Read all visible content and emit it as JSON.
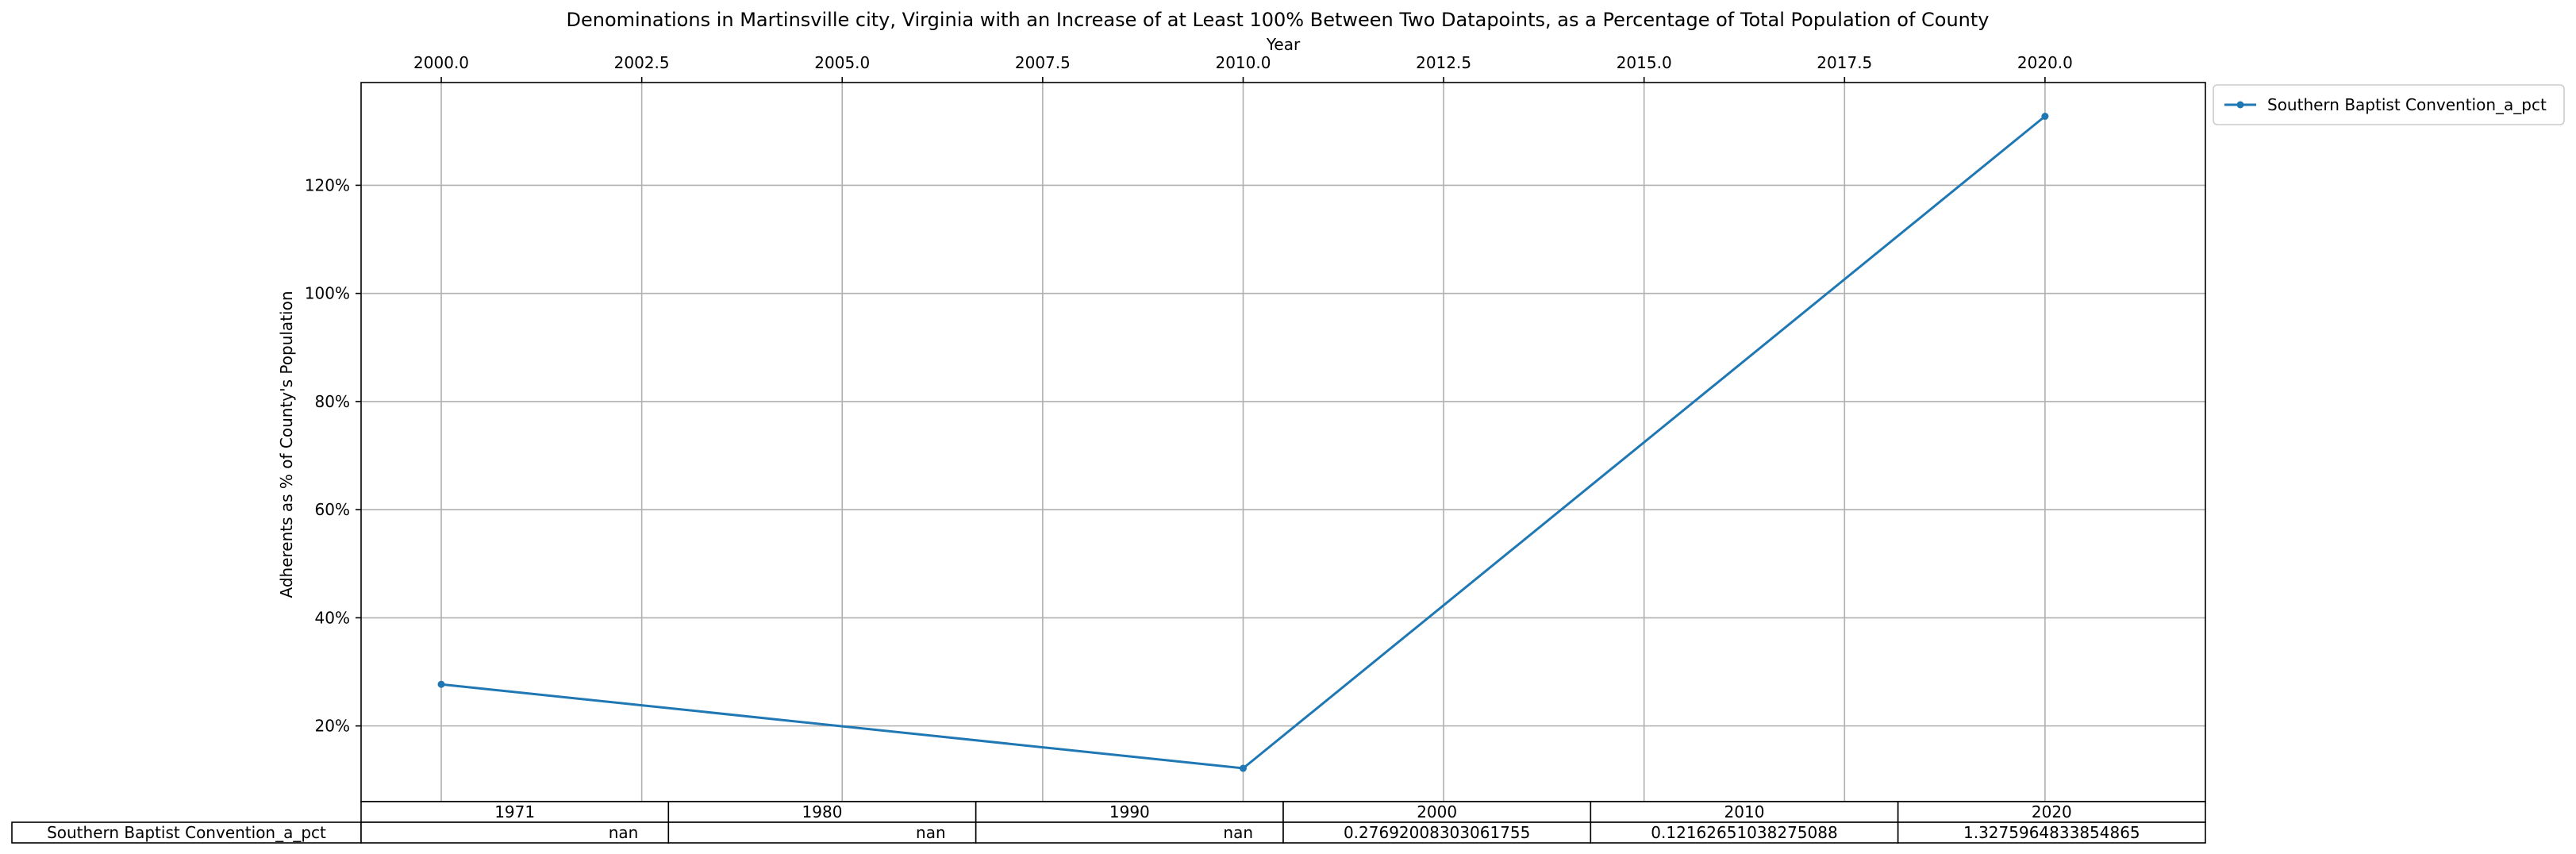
{
  "chart_data": {
    "type": "line",
    "title": "Denominations in Martinsville city, Virginia with an Increase of at Least 100% Between Two Datapoints, as a Percentage of Total Population of County",
    "xlabel": "Year",
    "ylabel": "Adherents as % of County's Population",
    "x_ticks": [
      "2000.0",
      "2002.5",
      "2005.0",
      "2007.5",
      "2010.0",
      "2012.5",
      "2015.0",
      "2017.5",
      "2020.0"
    ],
    "y_ticks": [
      "20%",
      "40%",
      "60%",
      "80%",
      "100%",
      "120%"
    ],
    "xlim": [
      1999.0,
      2022.0
    ],
    "ylim": [
      0.06,
      1.39
    ],
    "grid": true,
    "x_axis_position": "top",
    "legend_position": "outside-top-right",
    "series": [
      {
        "name": "Southern Baptist Convention_a_pct",
        "color": "#1f77b4",
        "x": [
          2000,
          2010,
          2020
        ],
        "y": [
          0.27692008303061755,
          0.12162651038275088,
          1.3275964833854865
        ]
      }
    ],
    "table": {
      "columns": [
        "1971",
        "1980",
        "1990",
        "2000",
        "2010",
        "2020"
      ],
      "rows": [
        {
          "label": "Southern Baptist Convention_a_pct",
          "cells": [
            "nan",
            "nan",
            "nan",
            "0.27692008303061755",
            "0.12162651038275088",
            "1.3275964833854865"
          ]
        }
      ]
    }
  }
}
